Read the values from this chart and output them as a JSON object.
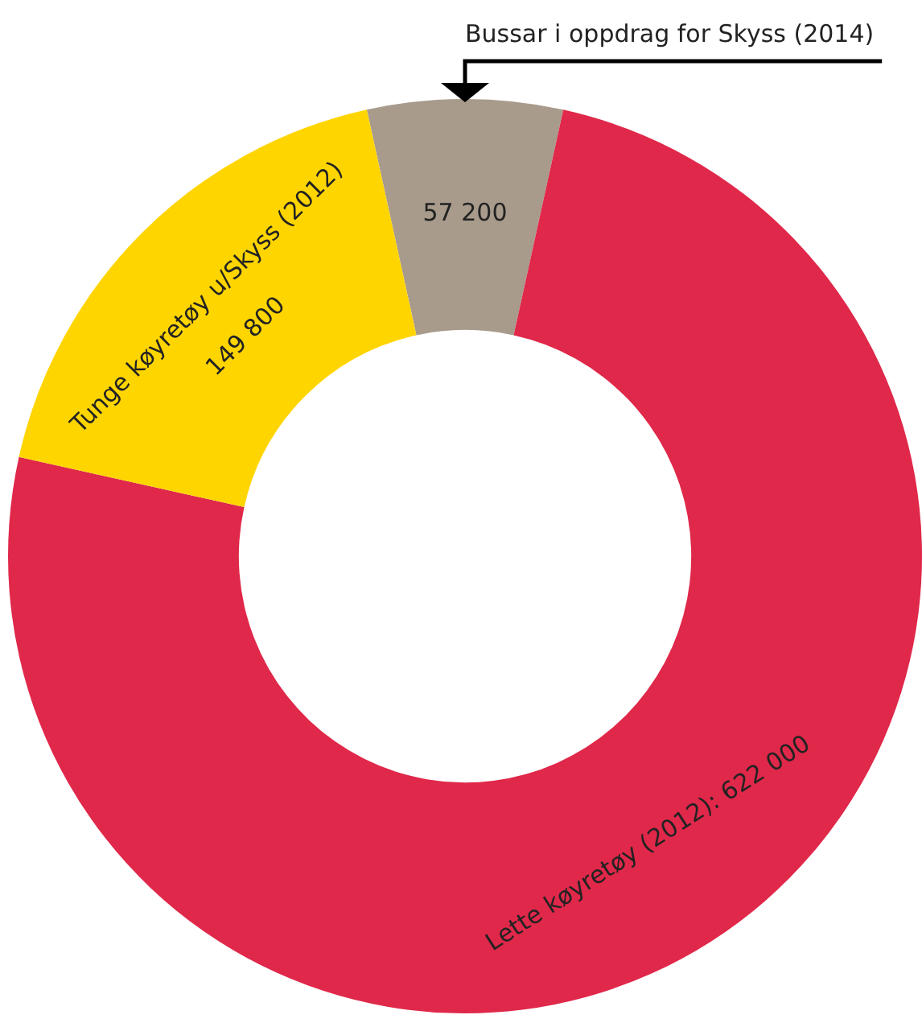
{
  "chart_data": {
    "type": "donut",
    "categories": [
      "Bussar i oppdrag for Skyss (2014)",
      "Lette køyretøy (2012)",
      "Tunge køyretøy u/Skyss (2012)"
    ],
    "values": [
      57200,
      622000,
      149800
    ],
    "value_labels": [
      "57 200",
      "622 000",
      "149 800"
    ],
    "colors": [
      "#a89b8c",
      "#e0284a",
      "#ffd500"
    ],
    "legend": false
  }
}
